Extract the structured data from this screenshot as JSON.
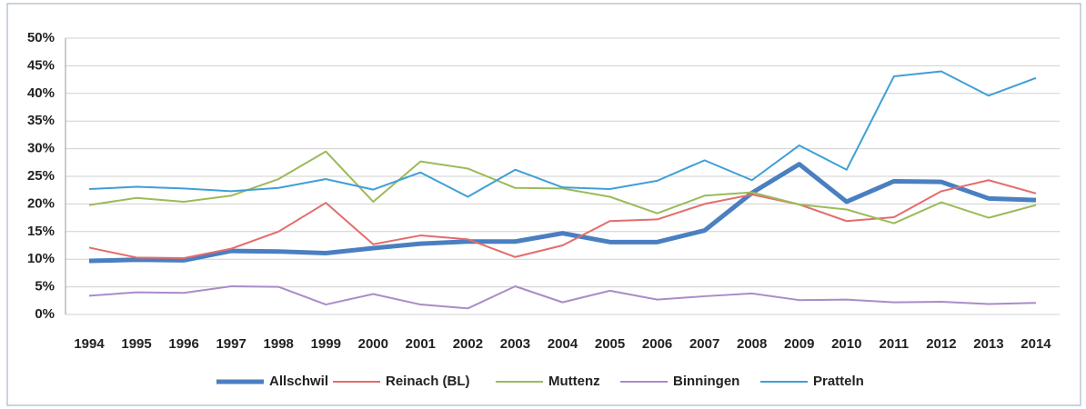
{
  "chart_data": {
    "type": "line",
    "categories": [
      "1994",
      "1995",
      "1996",
      "1997",
      "1998",
      "1999",
      "2000",
      "2001",
      "2002",
      "2003",
      "2004",
      "2005",
      "2006",
      "2007",
      "2008",
      "2009",
      "2010",
      "2011",
      "2012",
      "2013",
      "2014"
    ],
    "ylim": [
      0,
      50
    ],
    "yticks": [
      {
        "value": 0,
        "label": "0%"
      },
      {
        "value": 5,
        "label": "5%"
      },
      {
        "value": 10,
        "label": "10%"
      },
      {
        "value": 15,
        "label": "15%"
      },
      {
        "value": 20,
        "label": "20%"
      },
      {
        "value": 25,
        "label": "25%"
      },
      {
        "value": 30,
        "label": "30%"
      },
      {
        "value": 35,
        "label": "35%"
      },
      {
        "value": 40,
        "label": "40%"
      },
      {
        "value": 45,
        "label": "45%"
      },
      {
        "value": 50,
        "label": "50%"
      }
    ],
    "grid": true,
    "legend": "bottom",
    "series": [
      {
        "name": "Allschwil",
        "color": "#4a7fc1",
        "width": 5,
        "values": [
          9.7,
          9.9,
          9.8,
          11.5,
          11.4,
          11.1,
          12,
          12.8,
          13.2,
          13.2,
          14.7,
          13.1,
          13.1,
          15.2,
          22,
          27.2,
          20.4,
          24.1,
          24,
          21,
          20.7
        ]
      },
      {
        "name": "Reinach (BL)",
        "color": "#e46c6c",
        "width": 2,
        "values": [
          12.1,
          10.3,
          10.2,
          11.9,
          15,
          20.2,
          12.7,
          14.3,
          13.6,
          10.4,
          12.5,
          16.9,
          17.2,
          20,
          21.7,
          19.9,
          16.9,
          17.6,
          22.3,
          24.3,
          21.9
        ]
      },
      {
        "name": "Muttenz",
        "color": "#9bbb59",
        "width": 2,
        "values": [
          19.8,
          21.1,
          20.4,
          21.5,
          24.5,
          29.5,
          20.4,
          27.7,
          26.4,
          22.9,
          22.8,
          21.3,
          18.3,
          21.5,
          22.1,
          19.9,
          19,
          16.5,
          20.3,
          17.5,
          19.8
        ]
      },
      {
        "name": "Binningen",
        "color": "#a98cc9",
        "width": 2,
        "values": [
          3.4,
          4.0,
          3.9,
          5.1,
          5,
          1.8,
          3.7,
          1.8,
          1.1,
          5.1,
          2.2,
          4.3,
          2.7,
          3.3,
          3.8,
          2.6,
          2.7,
          2.2,
          2.3,
          1.9,
          2.1
        ]
      },
      {
        "name": "Pratteln",
        "color": "#3f9fd6",
        "width": 2,
        "values": [
          22.7,
          23.1,
          22.8,
          22.3,
          22.9,
          24.5,
          22.6,
          25.7,
          21.3,
          26.2,
          23,
          22.7,
          24.2,
          27.9,
          24.3,
          30.6,
          26.2,
          43.1,
          44,
          39.6,
          42.8
        ]
      }
    ]
  }
}
